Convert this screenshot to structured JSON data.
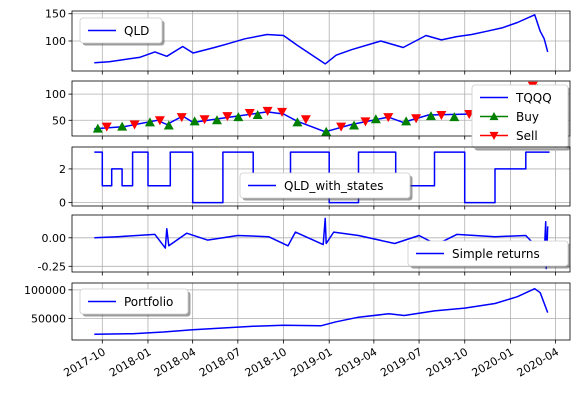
{
  "chart_data": [
    {
      "type": "line",
      "panel": "price",
      "series": [
        {
          "name": "QLD",
          "color": "#0000ff",
          "x": [
            "2017-09-15",
            "2017-10-15",
            "2017-11-15",
            "2017-12-15",
            "2018-01-15",
            "2018-02-08",
            "2018-03-12",
            "2018-04-02",
            "2018-05-15",
            "2018-06-15",
            "2018-07-15",
            "2018-08-29",
            "2018-10-01",
            "2018-10-29",
            "2018-12-24",
            "2019-01-15",
            "2019-02-15",
            "2019-04-15",
            "2019-05-30",
            "2019-07-15",
            "2019-08-15",
            "2019-09-15",
            "2019-10-15",
            "2019-11-15",
            "2019-12-15",
            "2020-01-15",
            "2020-02-19",
            "2020-03-01",
            "2020-03-09",
            "2020-03-16"
          ],
          "y": [
            60,
            62,
            66,
            70,
            80,
            72,
            90,
            78,
            88,
            96,
            104,
            112,
            110,
            92,
            58,
            74,
            84,
            100,
            88,
            110,
            102,
            108,
            112,
            118,
            124,
            134,
            148,
            118,
            104,
            80
          ]
        }
      ],
      "ylim": [
        45,
        155
      ],
      "yticks": [
        100,
        150
      ],
      "legend": {
        "labels": [
          "QLD"
        ],
        "placement": "upper-left"
      }
    },
    {
      "type": "line",
      "panel": "trades",
      "series": [
        {
          "name": "TQQQ",
          "color": "#0000ff",
          "x": [
            "2017-09-15",
            "2017-11-15",
            "2018-01-20",
            "2018-02-08",
            "2018-03-12",
            "2018-04-02",
            "2018-06-15",
            "2018-08-29",
            "2018-10-01",
            "2018-10-29",
            "2018-12-24",
            "2019-02-15",
            "2019-04-30",
            "2019-05-30",
            "2019-07-20",
            "2019-10-15",
            "2019-12-15",
            "2020-02-19",
            "2020-03-16"
          ],
          "y": [
            34,
            38,
            50,
            42,
            58,
            46,
            56,
            66,
            62,
            48,
            28,
            42,
            56,
            46,
            60,
            62,
            72,
            114,
            60
          ]
        },
        {
          "name": "Buy",
          "color": "#008000",
          "marker": "triangle-up",
          "x": [
            "2017-09-22",
            "2017-11-10",
            "2018-01-05",
            "2018-02-12",
            "2018-04-05",
            "2018-05-20",
            "2018-07-02",
            "2018-08-10",
            "2018-10-29",
            "2018-12-26",
            "2019-02-20",
            "2019-04-05",
            "2019-06-05",
            "2019-07-25",
            "2019-09-10",
            "2019-11-05",
            "2019-12-20",
            "2020-02-25"
          ],
          "y": [
            34,
            38,
            46,
            40,
            48,
            50,
            56,
            60,
            46,
            28,
            40,
            52,
            48,
            58,
            56,
            62,
            70,
            110
          ]
        },
        {
          "name": "Sell",
          "color": "#ff0000",
          "marker": "triangle-down",
          "x": [
            "2017-10-10",
            "2017-12-05",
            "2018-01-25",
            "2018-03-10",
            "2018-04-25",
            "2018-06-10",
            "2018-07-25",
            "2018-08-30",
            "2018-09-28",
            "2018-11-15",
            "2019-01-25",
            "2019-03-15",
            "2019-04-30",
            "2019-06-25",
            "2019-08-15",
            "2019-10-10",
            "2019-11-25",
            "2020-01-10",
            "2020-02-15"
          ],
          "y": [
            38,
            42,
            50,
            56,
            52,
            58,
            64,
            68,
            66,
            52,
            38,
            48,
            56,
            54,
            60,
            62,
            68,
            76,
            116
          ]
        }
      ],
      "ylim": [
        20,
        125
      ],
      "yticks": [
        50,
        100
      ],
      "legend": {
        "labels": [
          "TQQQ",
          "Buy",
          "Sell"
        ],
        "placement": "lower-right"
      }
    },
    {
      "type": "line",
      "panel": "states",
      "series": [
        {
          "name": "QLD_with_states",
          "color": "#0000ff",
          "x": [
            "2017-09-15",
            "2017-10-01",
            "2017-10-01",
            "2017-10-20",
            "2017-10-20",
            "2017-11-10",
            "2017-11-10",
            "2017-12-01",
            "2017-12-01",
            "2018-01-01",
            "2018-01-01",
            "2018-02-15",
            "2018-02-15",
            "2018-04-01",
            "2018-04-01",
            "2018-06-01",
            "2018-06-01",
            "2018-08-01",
            "2018-08-01",
            "2018-10-15",
            "2018-10-15",
            "2019-01-01",
            "2019-01-01",
            "2019-03-01",
            "2019-03-01",
            "2019-05-15",
            "2019-05-15",
            "2019-08-01",
            "2019-08-01",
            "2019-10-01",
            "2019-10-01",
            "2019-12-01",
            "2019-12-01",
            "2020-02-01",
            "2020-02-01",
            "2020-03-20"
          ],
          "y": [
            3,
            3,
            1,
            1,
            2,
            2,
            1,
            1,
            3,
            3,
            1,
            1,
            3,
            3,
            0,
            0,
            3,
            3,
            1,
            1,
            3,
            3,
            0,
            0,
            3,
            3,
            1,
            1,
            3,
            3,
            0,
            0,
            2,
            2,
            3,
            3
          ]
        }
      ],
      "ylim": [
        -0.2,
        3.3
      ],
      "yticks": [
        0,
        2
      ],
      "legend": {
        "labels": [
          "QLD_with_states"
        ],
        "placement": "lower-center"
      }
    },
    {
      "type": "line",
      "panel": "returns",
      "series": [
        {
          "name": "Simple returns",
          "color": "#0000ff",
          "x": [
            "2017-09-15",
            "2017-11-01",
            "2018-01-15",
            "2018-02-05",
            "2018-02-08",
            "2018-02-12",
            "2018-03-20",
            "2018-05-01",
            "2018-07-01",
            "2018-09-01",
            "2018-10-10",
            "2018-10-25",
            "2018-12-20",
            "2018-12-24",
            "2018-12-26",
            "2019-01-10",
            "2019-03-01",
            "2019-05-13",
            "2019-07-01",
            "2019-08-05",
            "2019-09-15",
            "2019-12-01",
            "2020-02-01",
            "2020-03-09",
            "2020-03-12",
            "2020-03-13",
            "2020-03-16"
          ],
          "y": [
            0.0,
            0.01,
            0.03,
            -0.09,
            0.08,
            -0.07,
            0.04,
            -0.02,
            0.02,
            0.01,
            -0.07,
            0.05,
            -0.06,
            0.17,
            -0.05,
            0.05,
            0.02,
            -0.05,
            0.02,
            -0.06,
            0.03,
            0.01,
            0.02,
            -0.15,
            0.14,
            -0.27,
            0.1
          ]
        }
      ],
      "ylim": [
        -0.3,
        0.2
      ],
      "yticks": [
        -0.25,
        0.0
      ],
      "legend": {
        "labels": [
          "Simple returns"
        ],
        "placement": "lower-right"
      }
    },
    {
      "type": "line",
      "panel": "portfolio",
      "series": [
        {
          "name": "Portfolio",
          "color": "#0000ff",
          "x": [
            "2017-09-15",
            "2017-12-01",
            "2018-02-01",
            "2018-04-01",
            "2018-06-01",
            "2018-08-01",
            "2018-10-01",
            "2018-12-15",
            "2019-01-15",
            "2019-03-01",
            "2019-05-01",
            "2019-06-01",
            "2019-08-01",
            "2019-10-01",
            "2019-12-01",
            "2020-01-15",
            "2020-02-19",
            "2020-03-01",
            "2020-03-16"
          ],
          "y": [
            22000,
            23000,
            26000,
            30000,
            33000,
            36000,
            38000,
            37000,
            44000,
            52000,
            58000,
            55000,
            63000,
            68000,
            76000,
            88000,
            102000,
            95000,
            60000
          ]
        }
      ],
      "ylim": [
        12000,
        112000
      ],
      "yticks": [
        50000,
        100000
      ],
      "legend": {
        "labels": [
          "Portfolio"
        ],
        "placement": "upper-left"
      }
    }
  ],
  "shared_x": {
    "xlim": [
      "2017-08-01",
      "2020-04-30"
    ],
    "ticks": [
      "2017-10-01",
      "2018-01-01",
      "2018-04-01",
      "2018-07-01",
      "2018-10-01",
      "2019-01-01",
      "2019-04-01",
      "2019-07-01",
      "2019-10-01",
      "2020-01-01",
      "2020-04-01"
    ],
    "tick_labels": [
      "2017-10",
      "2018-01",
      "2018-04",
      "2018-07",
      "2018-10",
      "2019-01",
      "2019-04",
      "2019-07",
      "2019-10",
      "2020-01",
      "2020-04"
    ],
    "grid": true
  }
}
